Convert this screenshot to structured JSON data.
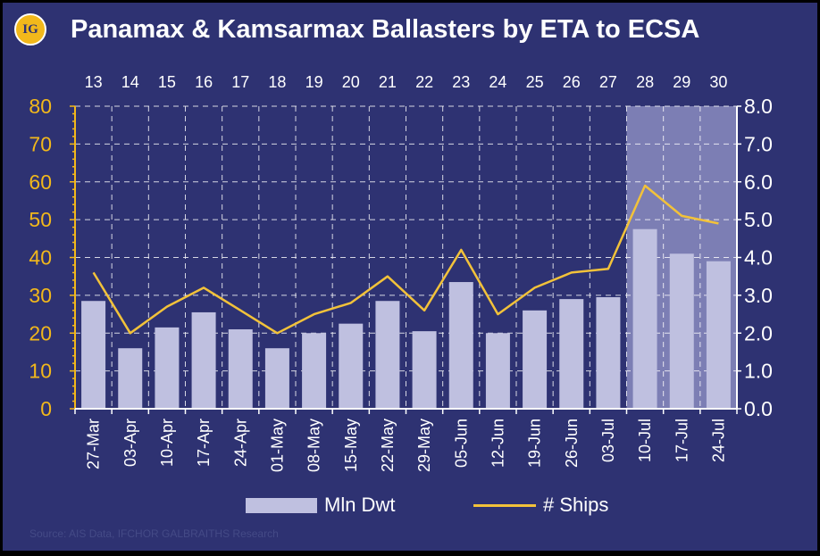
{
  "header": {
    "logo_text": "IG",
    "title": "Panamax & Kamsarmax Ballasters by ETA to ECSA"
  },
  "source": "Source: AIS Data, IFCHOR GALBRAITHS Research",
  "colors": {
    "background": "#2e3272",
    "bar": "#bfc0e0",
    "line": "#f2c23a",
    "left_axis": "#f2b81b",
    "highlight": "#8a8cbf"
  },
  "chart_data": {
    "type": "bar",
    "categories": [
      "27-Mar",
      "03-Apr",
      "10-Apr",
      "17-Apr",
      "24-Apr",
      "01-May",
      "08-May",
      "15-May",
      "22-May",
      "29-May",
      "05-Jun",
      "12-Jun",
      "19-Jun",
      "26-Jun",
      "03-Jul",
      "10-Jul",
      "17-Jul",
      "24-Jul"
    ],
    "week_numbers": [
      "13",
      "14",
      "15",
      "16",
      "17",
      "18",
      "19",
      "20",
      "21",
      "22",
      "23",
      "24",
      "25",
      "26",
      "27",
      "28",
      "29",
      "30"
    ],
    "series": [
      {
        "name": "Mln Dwt",
        "type": "bar",
        "axis": "left",
        "values": [
          28.5,
          16,
          21.5,
          25.5,
          21,
          16,
          20,
          22.5,
          28.5,
          20.5,
          33.5,
          20,
          26,
          29,
          29.5,
          47.5,
          41,
          39
        ]
      },
      {
        "name": "# Ships",
        "type": "line",
        "axis": "right",
        "values": [
          3.6,
          2.0,
          2.7,
          3.2,
          2.6,
          2.0,
          2.5,
          2.8,
          3.5,
          2.6,
          4.2,
          2.5,
          3.2,
          3.6,
          3.7,
          5.9,
          5.1,
          4.9
        ]
      }
    ],
    "left_axis": {
      "ylim": [
        0,
        80
      ],
      "ticks": [
        "0",
        "10",
        "20",
        "30",
        "40",
        "50",
        "60",
        "70",
        "80"
      ]
    },
    "right_axis": {
      "ylim": [
        0,
        8
      ],
      "ticks": [
        "0.0",
        "1.0",
        "2.0",
        "3.0",
        "4.0",
        "5.0",
        "6.0",
        "7.0",
        "8.0"
      ]
    },
    "highlight_from_category": "10-Jul",
    "grid": true,
    "legend_position": "bottom"
  }
}
